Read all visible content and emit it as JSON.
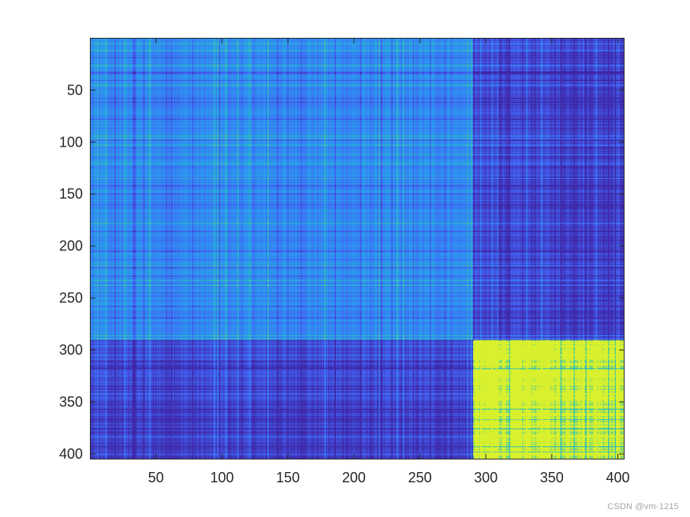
{
  "chart_data": {
    "type": "heatmap",
    "title": "",
    "xlabel": "",
    "ylabel": "",
    "n": 404,
    "xlim": [
      0.5,
      404.5
    ],
    "ylim": [
      0.5,
      404.5
    ],
    "y_reversed": true,
    "grid": false,
    "colormap": "parula",
    "colormap_stops": [
      "#3f27a8",
      "#4263f4",
      "#2a9af0",
      "#2cc1b0",
      "#f9f914"
    ],
    "x_ticks": [
      50,
      100,
      150,
      200,
      250,
      300,
      350,
      400
    ],
    "x_tick_labels": [
      "50",
      "100",
      "150",
      "200",
      "250",
      "300",
      "350",
      "400"
    ],
    "y_ticks": [
      50,
      100,
      150,
      200,
      250,
      300,
      350,
      400
    ],
    "y_tick_labels": [
      "50",
      "100",
      "150",
      "200",
      "250",
      "300",
      "350",
      "400"
    ],
    "blocks": [
      {
        "rows": [
          1,
          290
        ],
        "cols": [
          1,
          290
        ],
        "level": 0.42
      },
      {
        "rows": [
          1,
          290
        ],
        "cols": [
          291,
          404
        ],
        "level": 0.12
      },
      {
        "rows": [
          291,
          404
        ],
        "cols": [
          1,
          290
        ],
        "level": 0.12
      },
      {
        "rows": [
          291,
          404
        ],
        "cols": [
          291,
          404
        ],
        "level": 0.95
      }
    ],
    "band_rows": [
      6,
      12,
      19,
      26,
      33,
      34,
      41,
      45,
      58,
      62,
      78,
      94,
      97,
      98,
      103,
      112,
      121,
      135,
      142,
      150,
      160,
      178,
      186,
      205,
      219,
      221,
      229,
      233,
      238,
      245,
      258,
      269,
      286,
      289,
      296,
      305,
      309,
      318,
      331,
      342,
      357,
      367,
      376,
      384,
      393,
      398
    ]
  },
  "watermark": "CSDN @vm-1215"
}
